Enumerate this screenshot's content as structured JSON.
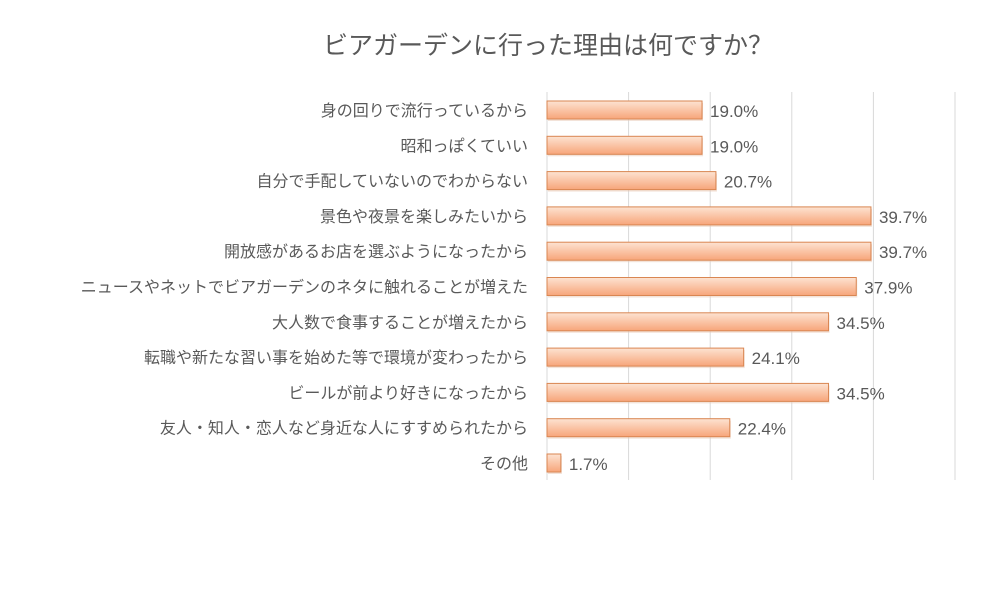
{
  "chart_data": {
    "type": "bar",
    "orientation": "horizontal",
    "title": "ビアガーデンに行った理由は何ですか？",
    "categories": [
      "身の回りで流行っているから",
      "昭和っぽくていい",
      "自分で手配していないのでわからない",
      "景色や夜景を楽しみたいから",
      "開放感があるお店を選ぶようになったから",
      "ニュースやネットでビアガーデンのネタに触れることが増えた",
      "大人数で食事することが増えたから",
      "転職や新たな習い事を始めた等で環境が変わったから",
      "ビールが前より好きになったから",
      "友人・知人・恋人など身近な人にすすめられたから",
      "その他"
    ],
    "values": [
      19.0,
      19.0,
      20.7,
      39.7,
      39.7,
      37.9,
      34.5,
      24.1,
      34.5,
      22.4,
      1.7
    ],
    "data_labels": [
      "19.0%",
      "19.0%",
      "20.7%",
      "39.7%",
      "39.7%",
      "37.9%",
      "34.5%",
      "24.1%",
      "34.5%",
      "22.4%",
      "1.7%"
    ],
    "xlim": [
      0,
      50
    ],
    "grid": true,
    "legend": "none",
    "colors": {
      "bar_light": "#fde3d2",
      "bar_dark": "#f7a57a",
      "bar_border": "#d98652",
      "grid": "#d9d9d9",
      "text": "#595959"
    }
  }
}
